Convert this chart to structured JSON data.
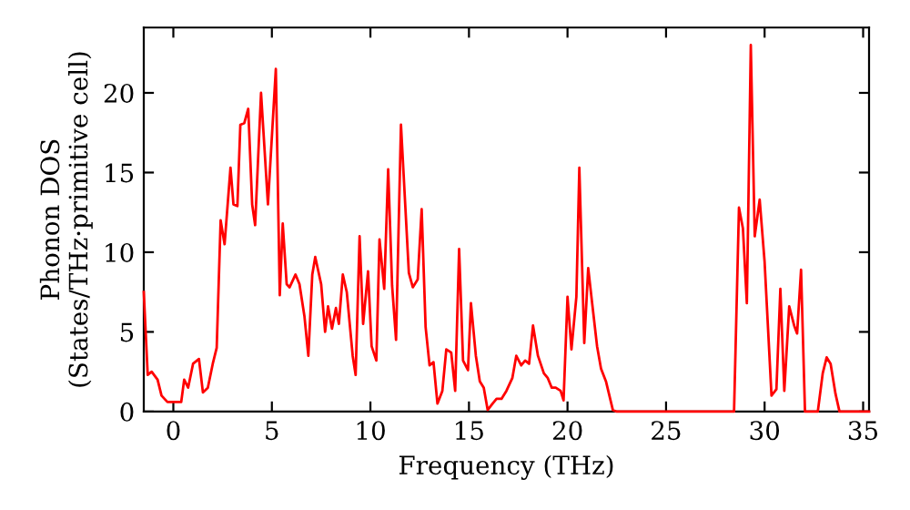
{
  "chart_data": {
    "type": "line",
    "xlabel": "Frequency (THz)",
    "ylabel": "Phonon DOS\n(States/THz·primitive cell)",
    "xlim": [
      -1.5,
      35.3
    ],
    "ylim": [
      0,
      24.1
    ],
    "xticks": [
      0,
      5,
      10,
      15,
      20,
      25,
      30,
      35
    ],
    "yticks": [
      0,
      5,
      10,
      15,
      20
    ],
    "grid": false,
    "line_style": "solid",
    "marker": "none",
    "series": [
      {
        "color": "#ff0000",
        "x": [
          -1.5,
          -1.3,
          -1.1,
          -0.8,
          -0.6,
          -0.3,
          0.4,
          0.55,
          0.75,
          1.0,
          1.3,
          1.5,
          1.75,
          2.0,
          2.2,
          2.4,
          2.6,
          2.9,
          3.05,
          3.25,
          3.4,
          3.6,
          3.8,
          4.0,
          4.15,
          4.45,
          4.8,
          5.2,
          5.4,
          5.55,
          5.75,
          5.9,
          6.2,
          6.4,
          6.65,
          6.85,
          7.05,
          7.2,
          7.5,
          7.7,
          7.85,
          8.05,
          8.25,
          8.4,
          8.6,
          8.8,
          9.1,
          9.25,
          9.45,
          9.63,
          9.88,
          10.06,
          10.3,
          10.46,
          10.7,
          10.9,
          11.1,
          11.3,
          11.55,
          11.95,
          12.15,
          12.4,
          12.6,
          12.8,
          13.0,
          13.2,
          13.4,
          13.65,
          13.85,
          14.1,
          14.3,
          14.5,
          14.7,
          14.95,
          15.1,
          15.35,
          15.55,
          15.75,
          15.95,
          16.2,
          16.4,
          16.65,
          16.9,
          17.2,
          17.4,
          17.65,
          17.85,
          18.05,
          18.25,
          18.5,
          18.8,
          19.0,
          19.2,
          19.4,
          19.65,
          19.8,
          20.0,
          20.2,
          20.45,
          20.6,
          20.85,
          21.05,
          21.25,
          21.5,
          21.7,
          21.95,
          22.3,
          22.5,
          28.45,
          28.7,
          28.9,
          29.1,
          29.3,
          29.5,
          29.75,
          30.0,
          30.35,
          30.6,
          30.8,
          31.0,
          31.25,
          31.5,
          31.65,
          31.85,
          32.05,
          32.7,
          32.95,
          33.15,
          33.35,
          33.6,
          33.8,
          35.3
        ],
        "values": [
          7.5,
          2.3,
          2.5,
          2.0,
          1.0,
          0.6,
          0.6,
          2.0,
          1.5,
          3.0,
          3.3,
          1.2,
          1.5,
          3.0,
          4.0,
          12.0,
          10.5,
          15.3,
          13.0,
          12.9,
          18.0,
          18.1,
          19.0,
          13.0,
          11.7,
          20.0,
          13.0,
          21.5,
          7.3,
          11.8,
          8.0,
          7.8,
          8.6,
          8.0,
          6.0,
          3.5,
          8.6,
          9.7,
          8.0,
          5.0,
          6.6,
          5.2,
          6.5,
          5.5,
          8.6,
          7.5,
          3.5,
          2.3,
          11.0,
          5.5,
          8.8,
          4.1,
          3.2,
          10.8,
          7.7,
          15.2,
          7.9,
          4.5,
          18.0,
          8.7,
          7.8,
          8.3,
          12.7,
          5.3,
          2.9,
          3.1,
          0.5,
          1.3,
          3.9,
          3.7,
          1.3,
          10.2,
          3.2,
          2.6,
          6.8,
          3.5,
          1.9,
          1.5,
          0.1,
          0.5,
          0.8,
          0.8,
          1.3,
          2.1,
          3.5,
          2.9,
          3.2,
          3.0,
          5.4,
          3.5,
          2.4,
          2.1,
          1.5,
          1.5,
          1.3,
          0.7,
          7.2,
          3.9,
          7.2,
          15.3,
          4.3,
          9.0,
          6.8,
          4.1,
          2.7,
          1.9,
          0.1,
          0,
          0,
          12.8,
          11.5,
          6.8,
          23.0,
          11.0,
          13.3,
          9.4,
          1.0,
          1.4,
          7.7,
          1.3,
          6.6,
          5.4,
          4.9,
          8.9,
          0,
          0,
          2.4,
          3.4,
          3.0,
          1.1,
          0,
          0
        ]
      }
    ]
  }
}
